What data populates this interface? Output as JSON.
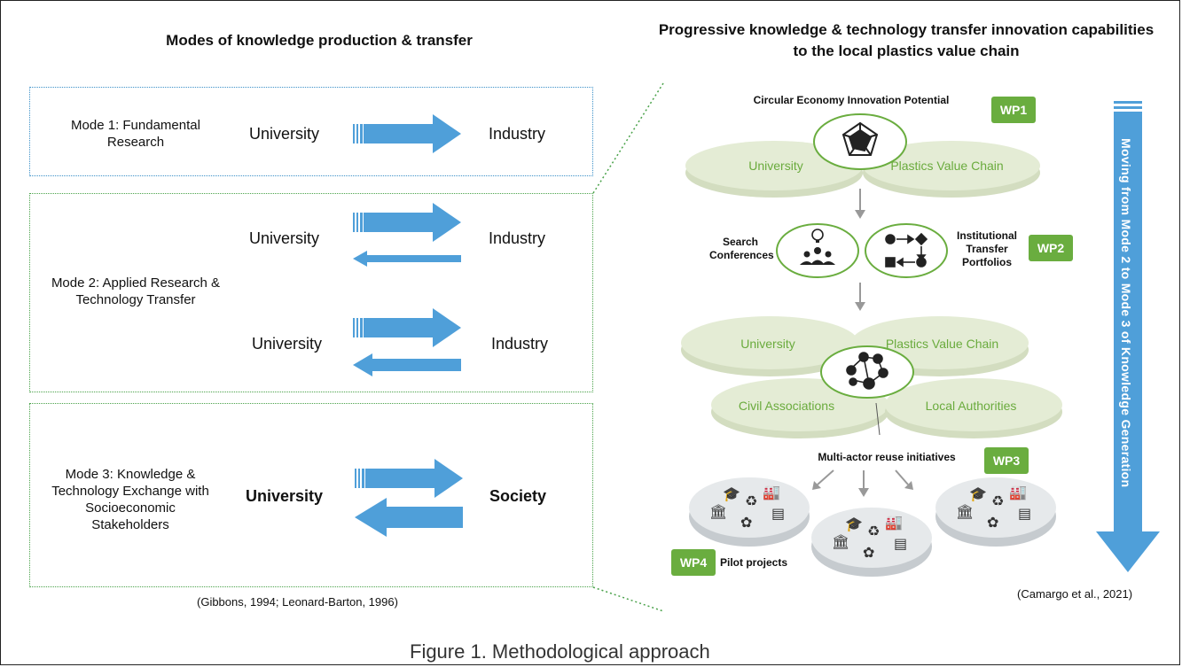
{
  "left": {
    "title": "Modes of knowledge production & transfer",
    "mode1": {
      "label": "Mode 1: Fundamental Research",
      "from": "University",
      "to": "Industry"
    },
    "mode2": {
      "label": "Mode 2: Applied Research & Technology Transfer",
      "from_a": "University",
      "to_a": "Industry",
      "from_b": "University",
      "to_b": "Industry"
    },
    "mode3": {
      "label": "Mode 3: Knowledge & Technology Exchange with Socioeconomic Stakeholders",
      "from": "University",
      "to": "Society"
    },
    "citation": "(Gibbons, 1994; Leonard-Barton, 1996)"
  },
  "right": {
    "title": "Progressive knowledge & technology transfer innovation capabilities to the local plastics value chain",
    "step1": {
      "heading": "Circular Economy Innovation Potential",
      "disk_left": "University",
      "disk_right": "Plastics Value Chain",
      "wp": "WP1"
    },
    "step2": {
      "left_label": "Search Conferences",
      "right_label": "Institutional Transfer Portfolios",
      "wp": "WP2"
    },
    "step3": {
      "disk_tl": "University",
      "disk_tr": "Plastics Value Chain",
      "disk_bl": "Civil Associations",
      "disk_br": "Local Authorities",
      "label": "Multi-actor reuse initiatives",
      "wp": "WP3"
    },
    "step4": {
      "label": "Pilot projects",
      "wp": "WP4"
    },
    "side_arrow": "Moving from Mode 2 to Mode 3 of Knowledge Generation",
    "citation": "(Camargo et al., 2021)"
  },
  "caption": "Figure 1. Methodological approach",
  "colors": {
    "arrow": "#4f9fd9",
    "green": "#6aad3f",
    "disk": "#e4ecd5",
    "disk_text": "#6aab3d"
  }
}
